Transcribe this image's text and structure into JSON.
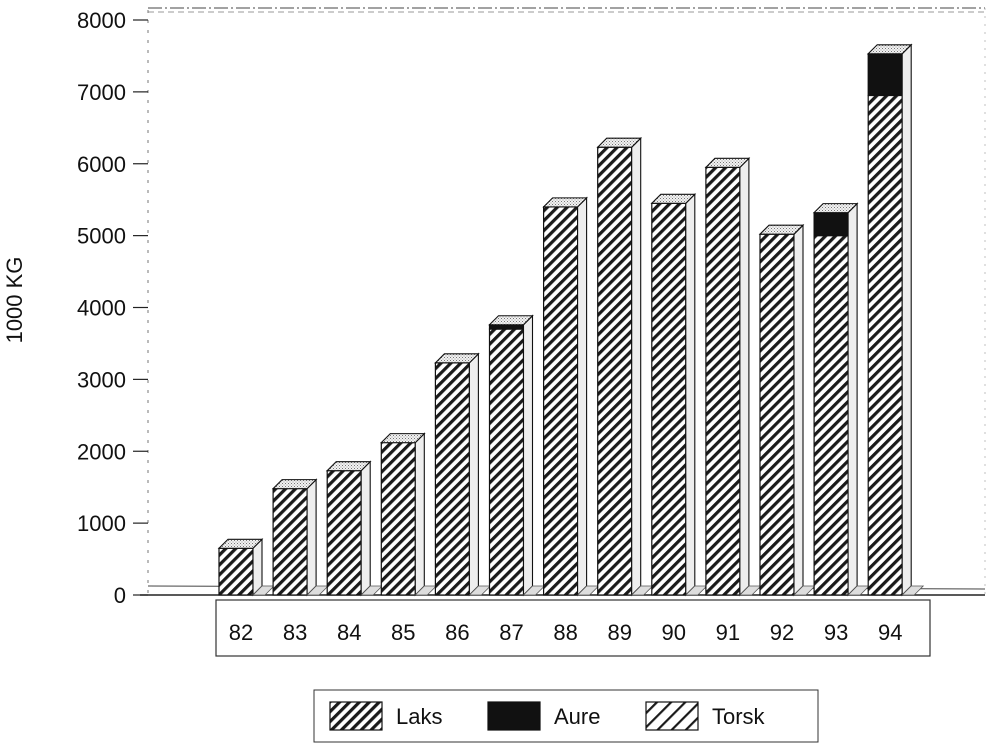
{
  "chart_data": {
    "type": "bar",
    "stacked": true,
    "three_d": true,
    "title": "",
    "xlabel": "",
    "ylabel": "1000 KG",
    "ylim": [
      0,
      8000
    ],
    "yticks": [
      0,
      1000,
      2000,
      3000,
      4000,
      5000,
      6000,
      7000,
      8000
    ],
    "categories": [
      "82",
      "83",
      "84",
      "85",
      "86",
      "87",
      "88",
      "89",
      "90",
      "91",
      "92",
      "93",
      "94"
    ],
    "series": [
      {
        "name": "Laks",
        "pattern": "dense-hatch",
        "values": [
          650,
          1480,
          1730,
          2120,
          3230,
          3700,
          5400,
          6230,
          5450,
          5950,
          5020,
          5000,
          6950
        ]
      },
      {
        "name": "Aure",
        "pattern": "solid",
        "color": "#111111",
        "values": [
          0,
          0,
          0,
          0,
          0,
          60,
          0,
          0,
          0,
          0,
          0,
          320,
          580
        ]
      },
      {
        "name": "Torsk",
        "pattern": "sparse-hatch",
        "values": [
          0,
          0,
          0,
          0,
          0,
          0,
          0,
          0,
          0,
          0,
          0,
          0,
          0
        ]
      }
    ],
    "legend_position": "bottom",
    "grid": false
  }
}
